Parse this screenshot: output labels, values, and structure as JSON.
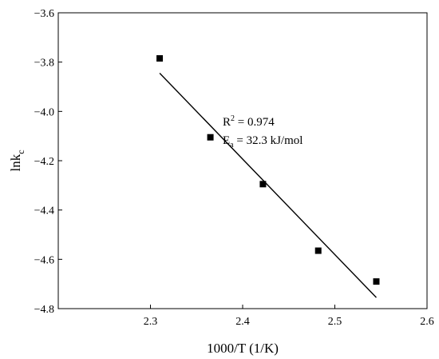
{
  "chart_data": {
    "type": "scatter",
    "xlabel": "1000/T (1/K)",
    "ylabel": {
      "main": "lnk",
      "sub": "c"
    },
    "xlim": [
      2.2,
      2.6
    ],
    "ylim": [
      -4.8,
      -3.6
    ],
    "xticks": [
      "2.3",
      "2.4",
      "2.5",
      "2.6"
    ],
    "yticks": [
      "−4.8",
      "−4.6",
      "−4.4",
      "−4.2",
      "−4.0",
      "−3.8",
      "−3.6"
    ],
    "xtick_values": [
      2.3,
      2.4,
      2.5,
      2.6
    ],
    "ytick_values": [
      -4.8,
      -4.6,
      -4.4,
      -4.2,
      -4.0,
      -3.8,
      -3.6
    ],
    "points": [
      {
        "x": 2.31,
        "y": -3.785
      },
      {
        "x": 2.365,
        "y": -4.105
      },
      {
        "x": 2.422,
        "y": -4.295
      },
      {
        "x": 2.482,
        "y": -4.565
      },
      {
        "x": 2.545,
        "y": -4.69
      }
    ],
    "fit_line": {
      "x": [
        2.31,
        2.545
      ],
      "y": [
        -3.845,
        -4.755
      ]
    },
    "grid": false,
    "annotations": {
      "r2": {
        "base": "R",
        "sup": "2",
        "rest": " = 0.974"
      },
      "ea": {
        "base": "E",
        "sub": "a",
        "rest": " = 32.3 kJ/mol"
      }
    }
  }
}
